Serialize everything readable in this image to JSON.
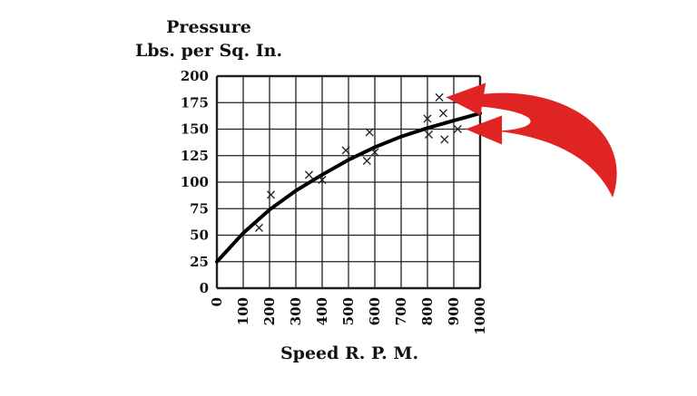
{
  "chart_data": {
    "type": "scatter",
    "ylabel_line1": "Pressure",
    "ylabel_line2": "Lbs. per Sq. In.",
    "xlabel": "Speed R. P. M.",
    "xlim": [
      0,
      1000
    ],
    "ylim": [
      0,
      200
    ],
    "x_ticks": [
      "0",
      "100",
      "200",
      "300",
      "400",
      "500",
      "600",
      "700",
      "800",
      "900",
      "1000"
    ],
    "y_ticks": [
      "0",
      "25",
      "50",
      "75",
      "100",
      "125",
      "150",
      "175",
      "200"
    ],
    "grid": true,
    "marker": "×",
    "points": [
      {
        "x": 160,
        "y": 57
      },
      {
        "x": 205,
        "y": 88
      },
      {
        "x": 350,
        "y": 107
      },
      {
        "x": 400,
        "y": 102
      },
      {
        "x": 490,
        "y": 130
      },
      {
        "x": 570,
        "y": 120
      },
      {
        "x": 580,
        "y": 147
      },
      {
        "x": 600,
        "y": 128
      },
      {
        "x": 800,
        "y": 160
      },
      {
        "x": 805,
        "y": 145
      },
      {
        "x": 845,
        "y": 180
      },
      {
        "x": 860,
        "y": 165
      },
      {
        "x": 865,
        "y": 140
      },
      {
        "x": 915,
        "y": 150
      }
    ],
    "fit_curve": [
      {
        "x": 0,
        "y": 25
      },
      {
        "x": 100,
        "y": 52
      },
      {
        "x": 200,
        "y": 74
      },
      {
        "x": 300,
        "y": 92
      },
      {
        "x": 400,
        "y": 107
      },
      {
        "x": 500,
        "y": 121
      },
      {
        "x": 600,
        "y": 133
      },
      {
        "x": 700,
        "y": 143
      },
      {
        "x": 800,
        "y": 151
      },
      {
        "x": 900,
        "y": 158
      },
      {
        "x": 1000,
        "y": 165
      }
    ],
    "annotation_arrows": [
      {
        "target_x": 870,
        "target_y": 180
      },
      {
        "target_x": 945,
        "target_y": 150
      }
    ],
    "colors": {
      "axis": "#111111",
      "grid": "#222222",
      "marker": "#222222",
      "curve": "#000000",
      "arrow": "#e02424"
    }
  }
}
